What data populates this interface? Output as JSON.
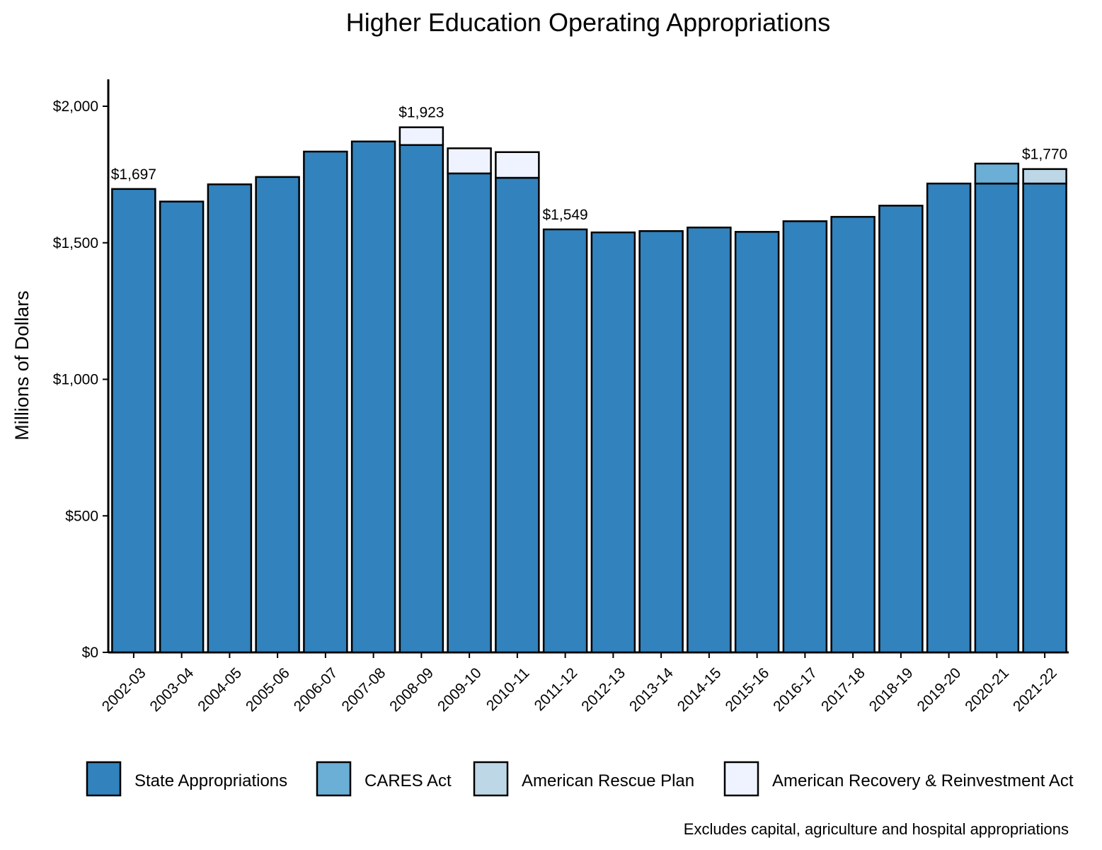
{
  "chart_data": {
    "type": "bar",
    "stacked": true,
    "title": "Higher Education Operating Appropriations",
    "ylabel": "Millions of Dollars",
    "xlabel": "",
    "ylim": [
      0,
      2100
    ],
    "yticks": [
      0,
      500,
      1000,
      1500,
      2000
    ],
    "ytick_labels": [
      "$0",
      "$500",
      "$1,000",
      "$1,500",
      "$2,000"
    ],
    "categories": [
      "2002-03",
      "2003-04",
      "2004-05",
      "2005-06",
      "2006-07",
      "2007-08",
      "2008-09",
      "2009-10",
      "2010-11",
      "2011-12",
      "2012-13",
      "2013-14",
      "2014-15",
      "2015-16",
      "2016-17",
      "2017-18",
      "2018-19",
      "2019-20",
      "2020-21",
      "2021-22"
    ],
    "series": [
      {
        "name": "State Appropriations",
        "color": "#3182bd",
        "values": [
          1697,
          1651,
          1714,
          1741,
          1834,
          1871,
          1858,
          1754,
          1738,
          1549,
          1538,
          1543,
          1556,
          1540,
          1579,
          1595,
          1636,
          1717,
          1717,
          1717
        ]
      },
      {
        "name": "CARES Act",
        "color": "#6baed6",
        "values": [
          0,
          0,
          0,
          0,
          0,
          0,
          0,
          0,
          0,
          0,
          0,
          0,
          0,
          0,
          0,
          0,
          0,
          0,
          73,
          0
        ]
      },
      {
        "name": "American Rescue Plan",
        "color": "#bdd7e7",
        "values": [
          0,
          0,
          0,
          0,
          0,
          0,
          0,
          0,
          0,
          0,
          0,
          0,
          0,
          0,
          0,
          0,
          0,
          0,
          0,
          53
        ]
      },
      {
        "name": "American Recovery & Reinvestment Act",
        "color": "#eff3ff",
        "values": [
          0,
          0,
          0,
          0,
          0,
          0,
          65,
          92,
          94,
          0,
          0,
          0,
          0,
          0,
          0,
          0,
          0,
          0,
          0,
          0
        ]
      }
    ],
    "annotations": [
      {
        "category": "2002-03",
        "text": "$1,697"
      },
      {
        "category": "2008-09",
        "text": "$1,923"
      },
      {
        "category": "2011-12",
        "text": "$1,549"
      },
      {
        "category": "2021-22",
        "text": "$1,770"
      }
    ],
    "legend_position": "bottom",
    "caption": "Excludes capital, agriculture and hospital appropriations",
    "grid": false
  }
}
